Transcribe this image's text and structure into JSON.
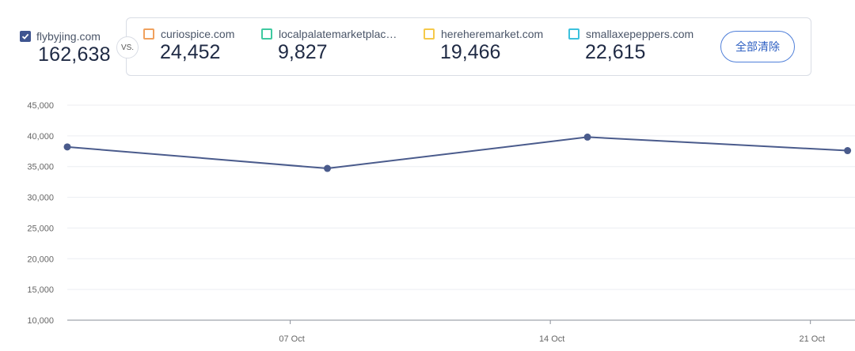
{
  "primary": {
    "name": "flybyjing.com",
    "value": "162,638",
    "color": "#3f5590"
  },
  "vs_label": "VS.",
  "competitors": [
    {
      "name": "curiospice.com",
      "value": "24,452",
      "color": "#f0a15e"
    },
    {
      "name": "localpalatemarketplac…",
      "value": "9,827",
      "color": "#3fc9a0"
    },
    {
      "name": "hereheremarket.com",
      "value": "19,466",
      "color": "#f5c94a"
    },
    {
      "name": "smallaxepeppers.com",
      "value": "22,615",
      "color": "#3cc1dd"
    }
  ],
  "clear_button_label": "全部清除",
  "chart_data": {
    "type": "line",
    "y_ticks": [
      "45,000",
      "40,000",
      "35,000",
      "30,000",
      "25,000",
      "20,000",
      "15,000",
      "10,000"
    ],
    "ylim": [
      10000,
      45000
    ],
    "x_ticks": [
      {
        "label": "07 Oct",
        "day": 7
      },
      {
        "label": "14 Oct",
        "day": 14
      },
      {
        "label": "21 Oct",
        "day": 21
      }
    ],
    "xlim_days": [
      1,
      22.2
    ],
    "series": [
      {
        "color": "#4a5b8c",
        "points": [
          {
            "day": 1,
            "value": 38200
          },
          {
            "day": 8,
            "value": 34700
          },
          {
            "day": 15,
            "value": 39800
          },
          {
            "day": 22,
            "value": 37600
          }
        ]
      }
    ],
    "grid": true
  }
}
